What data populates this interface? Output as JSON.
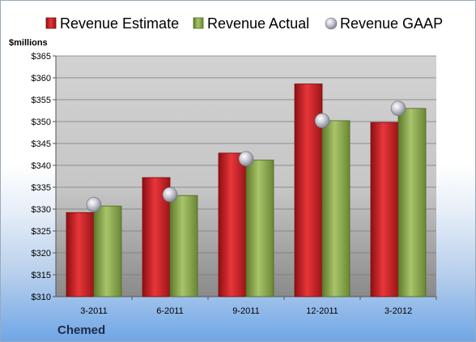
{
  "chart_data": {
    "type": "bar",
    "categories": [
      "3-2011",
      "6-2011",
      "9-2011",
      "12-2011",
      "3-2012"
    ],
    "series": [
      {
        "name": "Revenue Estimate",
        "values": [
          329.2,
          337.2,
          342.8,
          358.6,
          349.8
        ],
        "color": "#cc1f24"
      },
      {
        "name": "Revenue Actual",
        "values": [
          330.7,
          333.1,
          341.2,
          350.2,
          353.0
        ],
        "color": "#8fac52"
      },
      {
        "name": "Revenue GAAP",
        "values": [
          331.0,
          333.3,
          341.5,
          350.2,
          353.0
        ],
        "color": "#b8b8c4",
        "marker": "circle"
      }
    ],
    "ylabel": "$millions",
    "ylim": [
      310,
      365
    ],
    "yticks": [
      310,
      315,
      320,
      325,
      330,
      335,
      340,
      345,
      350,
      355,
      360,
      365
    ],
    "ytick_labels": [
      "$310",
      "$315",
      "$320",
      "$325",
      "$330",
      "$335",
      "$340",
      "$345",
      "$350",
      "$355",
      "$360",
      "$365"
    ],
    "grid": true,
    "legend_position": "top"
  },
  "company": "Chemed"
}
